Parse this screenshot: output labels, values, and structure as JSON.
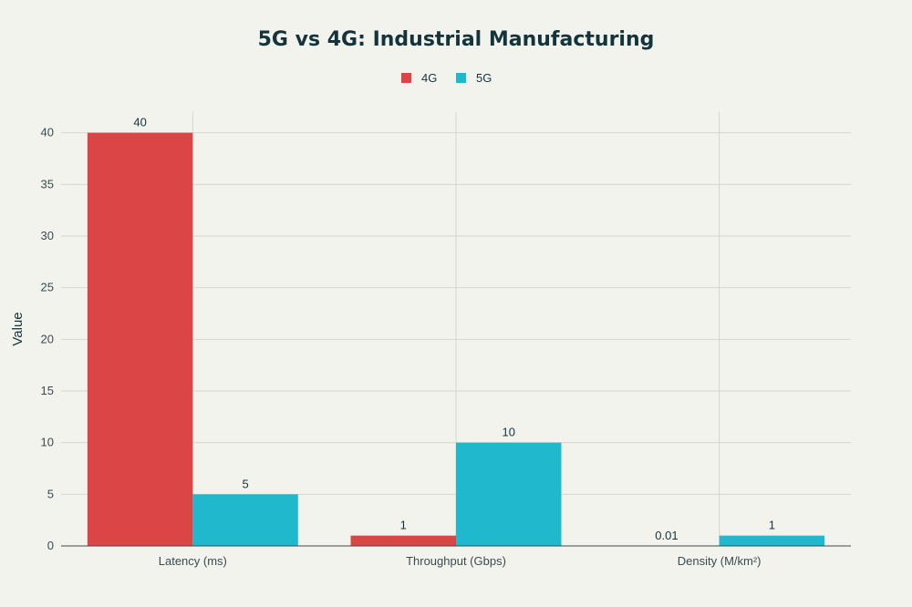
{
  "chart_data": {
    "type": "bar",
    "title": "5G vs 4G: Industrial Manufacturing",
    "categories": [
      "Latency (ms)",
      "Throughput (Gbps)",
      "Density (M/km²)"
    ],
    "series": [
      {
        "name": "4G",
        "color": "#db4545",
        "values": [
          40,
          1,
          0.01
        ],
        "labels": [
          "40",
          "1",
          "0.01"
        ]
      },
      {
        "name": "5G",
        "color": "#1fb8cd",
        "values": [
          5,
          10,
          1
        ],
        "labels": [
          "5",
          "10",
          "1"
        ]
      }
    ],
    "xlabel": "",
    "ylabel": "Value",
    "ylim": [
      0,
      42
    ],
    "yticks": [
      0,
      5,
      10,
      15,
      20,
      25,
      30,
      35,
      40
    ],
    "grid": true,
    "legend": "top-center"
  }
}
